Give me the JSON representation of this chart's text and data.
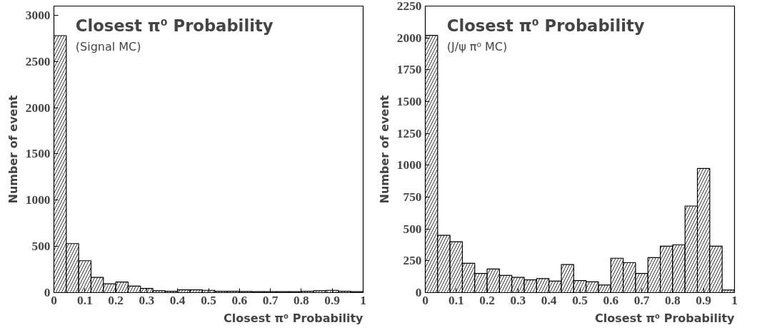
{
  "chart_data": [
    {
      "type": "histogram",
      "title": "Closest π⁰ Probability",
      "subtitle": "(Signal MC)",
      "xlabel": "Closest π⁰ Probability",
      "ylabel": "Number of event",
      "color": "#000000",
      "bins": [
        0,
        0.04,
        0.08,
        0.12,
        0.16,
        0.2,
        0.24,
        0.28,
        0.32,
        0.36,
        0.4,
        0.44,
        0.48,
        0.52,
        0.56,
        0.6,
        0.64,
        0.68,
        0.72,
        0.76,
        0.8,
        0.84,
        0.88,
        0.92,
        0.96,
        1
      ],
      "values": [
        2780,
        530,
        345,
        165,
        95,
        115,
        70,
        45,
        20,
        15,
        30,
        30,
        25,
        15,
        15,
        12,
        10,
        10,
        10,
        10,
        15,
        20,
        25,
        15,
        10
      ],
      "xlim": [
        0,
        1
      ],
      "xticks": [
        0,
        0.1,
        0.2,
        0.3,
        0.4,
        0.5,
        0.6,
        0.7,
        0.8,
        0.9,
        1
      ],
      "ylim": [
        0,
        3100
      ],
      "yticks": [
        0,
        500,
        1000,
        1500,
        2000,
        2500,
        3000
      ],
      "grid": false
    },
    {
      "type": "histogram",
      "title": "Closest π⁰ Probability",
      "subtitle": "(J/ψ π⁰ MC)",
      "xlabel": "Closest π⁰ Probability",
      "ylabel": "Number of event",
      "color": "#000000",
      "bins": [
        0,
        0.04,
        0.08,
        0.12,
        0.16,
        0.2,
        0.24,
        0.28,
        0.32,
        0.36,
        0.4,
        0.44,
        0.48,
        0.52,
        0.56,
        0.6,
        0.64,
        0.68,
        0.72,
        0.76,
        0.8,
        0.84,
        0.88,
        0.92,
        0.96,
        1
      ],
      "values": [
        2020,
        450,
        400,
        230,
        150,
        185,
        135,
        120,
        100,
        110,
        90,
        220,
        95,
        85,
        60,
        270,
        235,
        150,
        275,
        365,
        375,
        680,
        975,
        365,
        20
      ],
      "xlim": [
        0,
        1
      ],
      "xticks": [
        0,
        0.1,
        0.2,
        0.3,
        0.4,
        0.5,
        0.6,
        0.7,
        0.8,
        0.9,
        1
      ],
      "ylim": [
        0,
        2250
      ],
      "yticks": [
        0,
        250,
        500,
        750,
        1000,
        1250,
        1500,
        1750,
        2000,
        2250
      ],
      "grid": false
    }
  ]
}
